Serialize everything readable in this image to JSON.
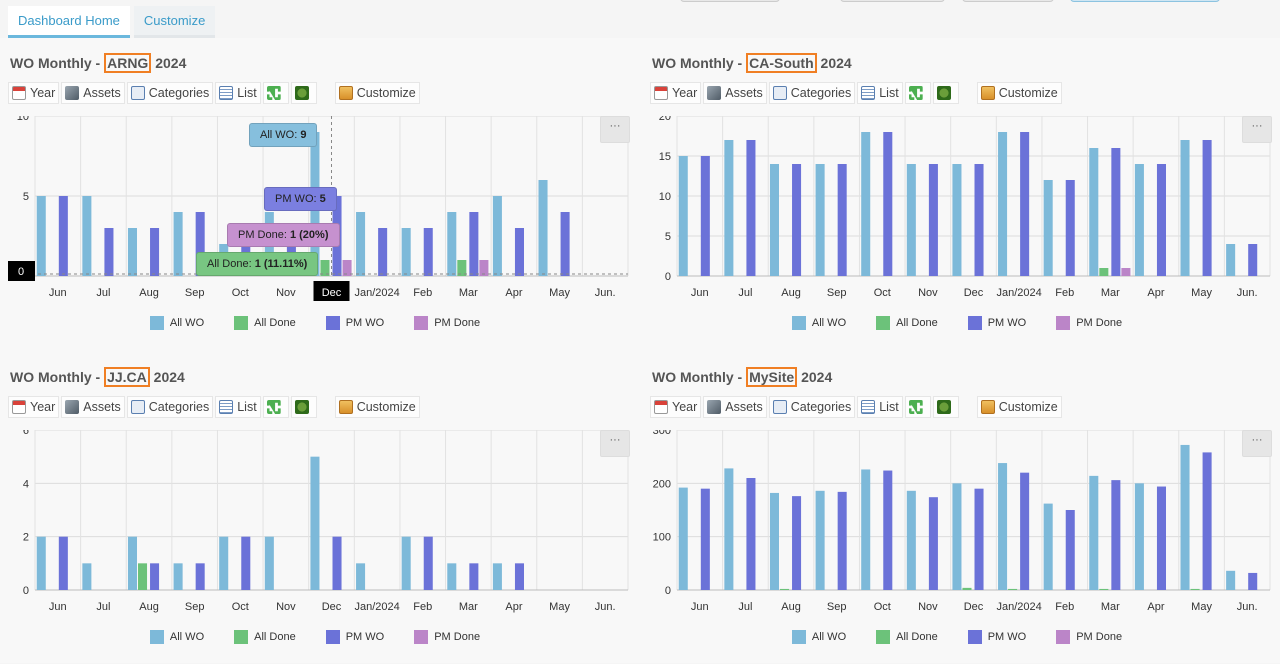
{
  "tabs": [
    {
      "label": "Dashboard Home",
      "active": true
    },
    {
      "label": "Customize",
      "active": false
    }
  ],
  "colors": {
    "all_wo": "#7db9d9",
    "all_done": "#6cc27a",
    "pm_wo": "#6b72d8",
    "pm_done": "#bb85c8",
    "highlight_box": "#f07f24",
    "tooltip_all_wo": "#86bfdd",
    "tooltip_pm_wo": "#7b7fe0",
    "tooltip_pm_done": "#c691cf",
    "tooltip_all_done": "#78c682"
  },
  "toolbar": {
    "year": "Year",
    "assets": "Assets",
    "categories": "Categories",
    "list": "List",
    "customize": "Customize",
    "more": "···"
  },
  "legend": [
    "All WO",
    "All Done",
    "PM WO",
    "PM Done"
  ],
  "panels": [
    {
      "title_prefix": "WO Monthly - ",
      "site": "ARNG",
      "title_suffix": " 2024",
      "chart_data": {
        "type": "bar",
        "categories": [
          "Jun",
          "Jul",
          "Aug",
          "Sep",
          "Oct",
          "Nov",
          "Dec",
          "Jan/2024",
          "Feb",
          "Mar",
          "Apr",
          "May",
          "Jun."
        ],
        "ylim": [
          0,
          10
        ],
        "yticks": [
          0,
          5,
          10
        ],
        "series": [
          {
            "name": "All WO",
            "values": [
              5,
              5,
              3,
              4,
              2,
              4,
              9,
              4,
              3,
              4,
              5,
              6,
              0
            ]
          },
          {
            "name": "All Done",
            "values": [
              0,
              0,
              0,
              0,
              0,
              0,
              1,
              0,
              0,
              1,
              0,
              0,
              0
            ]
          },
          {
            "name": "PM WO",
            "values": [
              5,
              3,
              3,
              4,
              3,
              3,
              5,
              3,
              3,
              4,
              3,
              4,
              0
            ]
          },
          {
            "name": "PM Done",
            "values": [
              0,
              0,
              0,
              0,
              0,
              0,
              1,
              0,
              0,
              1,
              0,
              0,
              0
            ]
          }
        ],
        "selected_category": "Dec",
        "crosshair_y_label": "0"
      },
      "tooltips": [
        {
          "label": "All WO: ",
          "value": "9"
        },
        {
          "label": "PM WO: ",
          "value": "5"
        },
        {
          "label": "PM Done: ",
          "value": "1 (20%)"
        },
        {
          "label": "All Done: ",
          "value": "1 (11.11%)"
        }
      ]
    },
    {
      "title_prefix": "WO Monthly - ",
      "site": "CA-South",
      "title_suffix": " 2024",
      "chart_data": {
        "type": "bar",
        "categories": [
          "Jun",
          "Jul",
          "Aug",
          "Sep",
          "Oct",
          "Nov",
          "Dec",
          "Jan/2024",
          "Feb",
          "Mar",
          "Apr",
          "May",
          "Jun."
        ],
        "ylim": [
          0,
          20
        ],
        "yticks": [
          0,
          5,
          10,
          15,
          20
        ],
        "series": [
          {
            "name": "All WO",
            "values": [
              15,
              17,
              14,
              14,
              18,
              14,
              14,
              18,
              12,
              16,
              14,
              17,
              4
            ]
          },
          {
            "name": "All Done",
            "values": [
              0,
              0,
              0,
              0,
              0,
              0,
              0,
              0,
              0,
              1,
              0,
              0,
              0
            ]
          },
          {
            "name": "PM WO",
            "values": [
              15,
              17,
              14,
              14,
              18,
              14,
              14,
              18,
              12,
              16,
              14,
              17,
              4
            ]
          },
          {
            "name": "PM Done",
            "values": [
              0,
              0,
              0,
              0,
              0,
              0,
              0,
              0,
              0,
              1,
              0,
              0,
              0
            ]
          }
        ]
      }
    },
    {
      "title_prefix": "WO Monthly - ",
      "site": "JJ.CA",
      "title_suffix": " 2024",
      "chart_data": {
        "type": "bar",
        "categories": [
          "Jun",
          "Jul",
          "Aug",
          "Sep",
          "Oct",
          "Nov",
          "Dec",
          "Jan/2024",
          "Feb",
          "Mar",
          "Apr",
          "May",
          "Jun."
        ],
        "ylim": [
          0,
          6
        ],
        "yticks": [
          0,
          2,
          4,
          6
        ],
        "series": [
          {
            "name": "All WO",
            "values": [
              2,
              1,
              2,
              1,
              2,
              2,
              5,
              1,
              2,
              1,
              1,
              0,
              0
            ]
          },
          {
            "name": "All Done",
            "values": [
              0,
              0,
              1,
              0,
              0,
              0,
              0,
              0,
              0,
              0,
              0,
              0,
              0
            ]
          },
          {
            "name": "PM WO",
            "values": [
              2,
              0,
              1,
              1,
              2,
              0,
              2,
              0,
              2,
              1,
              1,
              0,
              0
            ]
          },
          {
            "name": "PM Done",
            "values": [
              0,
              0,
              0,
              0,
              0,
              0,
              0,
              0,
              0,
              0,
              0,
              0,
              0
            ]
          }
        ]
      }
    },
    {
      "title_prefix": "WO Monthly - ",
      "site": "MySite",
      "title_suffix": " 2024",
      "chart_data": {
        "type": "bar",
        "categories": [
          "Jun",
          "Jul",
          "Aug",
          "Sep",
          "Oct",
          "Nov",
          "Dec",
          "Jan/2024",
          "Feb",
          "Mar",
          "Apr",
          "May",
          "Jun."
        ],
        "ylim": [
          0,
          300
        ],
        "yticks": [
          0,
          100,
          200,
          300
        ],
        "series": [
          {
            "name": "All WO",
            "values": [
              192,
              228,
              182,
              186,
              226,
              186,
              200,
              238,
              162,
              214,
              200,
              272,
              36
            ]
          },
          {
            "name": "All Done",
            "values": [
              0,
              0,
              2,
              0,
              0,
              0,
              4,
              2,
              0,
              2,
              0,
              2,
              0
            ]
          },
          {
            "name": "PM WO",
            "values": [
              190,
              210,
              176,
              184,
              224,
              174,
              190,
              220,
              150,
              206,
              194,
              258,
              32
            ]
          },
          {
            "name": "PM Done",
            "values": [
              0,
              0,
              0,
              0,
              0,
              0,
              0,
              0,
              0,
              0,
              0,
              0,
              0
            ]
          }
        ]
      }
    }
  ]
}
